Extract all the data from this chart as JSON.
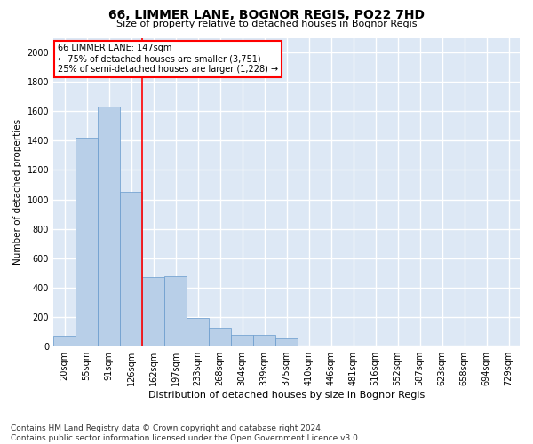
{
  "title1": "66, LIMMER LANE, BOGNOR REGIS, PO22 7HD",
  "title2": "Size of property relative to detached houses in Bognor Regis",
  "xlabel": "Distribution of detached houses by size in Bognor Regis",
  "ylabel": "Number of detached properties",
  "footnote": "Contains HM Land Registry data © Crown copyright and database right 2024.\nContains public sector information licensed under the Open Government Licence v3.0.",
  "bin_labels": [
    "20sqm",
    "55sqm",
    "91sqm",
    "126sqm",
    "162sqm",
    "197sqm",
    "233sqm",
    "268sqm",
    "304sqm",
    "339sqm",
    "375sqm",
    "410sqm",
    "446sqm",
    "481sqm",
    "516sqm",
    "552sqm",
    "587sqm",
    "623sqm",
    "658sqm",
    "694sqm",
    "729sqm"
  ],
  "bar_values": [
    75,
    1420,
    1630,
    1050,
    470,
    480,
    195,
    125,
    80,
    80,
    55,
    0,
    0,
    0,
    0,
    0,
    0,
    0,
    0,
    0,
    0
  ],
  "bar_color": "#b8cfe8",
  "bar_edge_color": "#6699cc",
  "bg_color": "#dde8f5",
  "grid_color": "white",
  "vline_color": "red",
  "annotation_text": "66 LIMMER LANE: 147sqm\n← 75% of detached houses are smaller (3,751)\n25% of semi-detached houses are larger (1,228) →",
  "annotation_box_color": "white",
  "annotation_box_edge": "red",
  "ylim": [
    0,
    2100
  ],
  "yticks": [
    0,
    200,
    400,
    600,
    800,
    1000,
    1200,
    1400,
    1600,
    1800,
    2000
  ],
  "title1_fontsize": 10,
  "title2_fontsize": 8,
  "xlabel_fontsize": 8,
  "ylabel_fontsize": 7.5,
  "tick_fontsize": 7,
  "footnote_fontsize": 6.5
}
